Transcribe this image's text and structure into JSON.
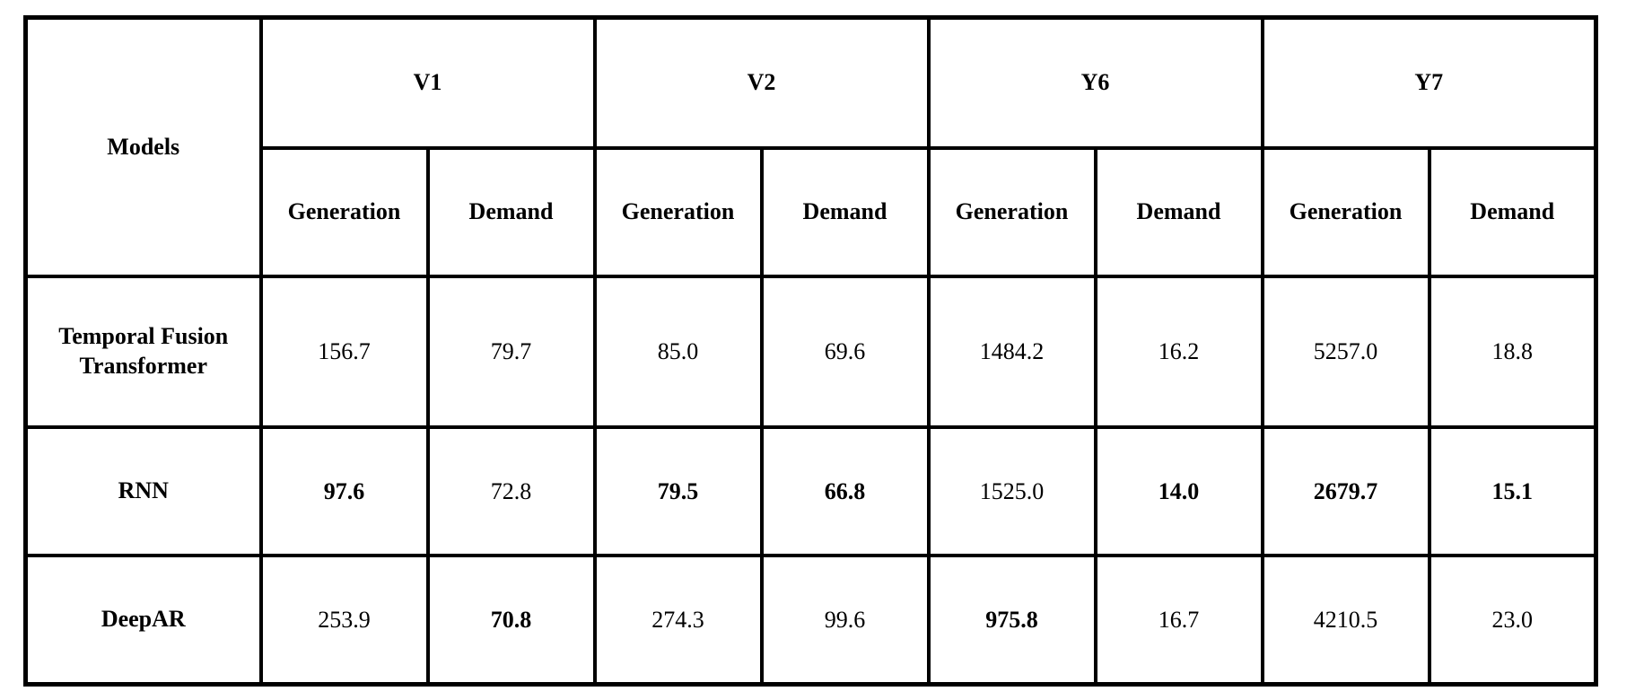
{
  "table": {
    "corner_header": "Models",
    "groups": [
      {
        "label": "V1",
        "columns": [
          "Generation",
          "Demand"
        ]
      },
      {
        "label": "V2",
        "columns": [
          "Generation",
          "Demand"
        ]
      },
      {
        "label": "Y6",
        "columns": [
          "Generation",
          "Demand"
        ]
      },
      {
        "label": "Y7",
        "columns": [
          "Generation",
          "Demand"
        ]
      }
    ],
    "rows": [
      {
        "model": "Temporal Fusion Transformer",
        "values": [
          {
            "text": "156.7",
            "bold": false
          },
          {
            "text": "79.7",
            "bold": false
          },
          {
            "text": "85.0",
            "bold": false
          },
          {
            "text": "69.6",
            "bold": false
          },
          {
            "text": "1484.2",
            "bold": false
          },
          {
            "text": "16.2",
            "bold": false
          },
          {
            "text": "5257.0",
            "bold": false
          },
          {
            "text": "18.8",
            "bold": false
          }
        ]
      },
      {
        "model": "RNN",
        "values": [
          {
            "text": "97.6",
            "bold": true
          },
          {
            "text": "72.8",
            "bold": false
          },
          {
            "text": "79.5",
            "bold": true
          },
          {
            "text": "66.8",
            "bold": true
          },
          {
            "text": "1525.0",
            "bold": false
          },
          {
            "text": "14.0",
            "bold": true
          },
          {
            "text": "2679.7",
            "bold": true
          },
          {
            "text": "15.1",
            "bold": true
          }
        ]
      },
      {
        "model": "DeepAR",
        "values": [
          {
            "text": "253.9",
            "bold": false
          },
          {
            "text": "70.8",
            "bold": true
          },
          {
            "text": "274.3",
            "bold": false
          },
          {
            "text": "99.6",
            "bold": false
          },
          {
            "text": "975.8",
            "bold": true
          },
          {
            "text": "16.7",
            "bold": false
          },
          {
            "text": "4210.5",
            "bold": false
          },
          {
            "text": "23.0",
            "bold": false
          }
        ]
      }
    ]
  },
  "colors": {
    "border": "#000000",
    "text": "#000000",
    "background": "#ffffff"
  },
  "chart_data": {
    "type": "table",
    "title": "",
    "column_groups": [
      "V1",
      "V2",
      "Y6",
      "Y7"
    ],
    "columns": [
      "Models",
      "V1 Generation",
      "V1 Demand",
      "V2 Generation",
      "V2 Demand",
      "Y6 Generation",
      "Y6 Demand",
      "Y7 Generation",
      "Y7 Demand"
    ],
    "rows": [
      [
        "Temporal Fusion Transformer",
        156.7,
        79.7,
        85.0,
        69.6,
        1484.2,
        16.2,
        5257.0,
        18.8
      ],
      [
        "RNN",
        97.6,
        72.8,
        79.5,
        66.8,
        1525.0,
        14.0,
        2679.7,
        15.1
      ],
      [
        "DeepAR",
        253.9,
        70.8,
        274.3,
        99.6,
        975.8,
        16.7,
        4210.5,
        23.0
      ]
    ],
    "bold_values": {
      "RNN": [
        97.6,
        79.5,
        66.8,
        14.0,
        2679.7,
        15.1
      ],
      "DeepAR": [
        70.8,
        975.8
      ]
    }
  }
}
